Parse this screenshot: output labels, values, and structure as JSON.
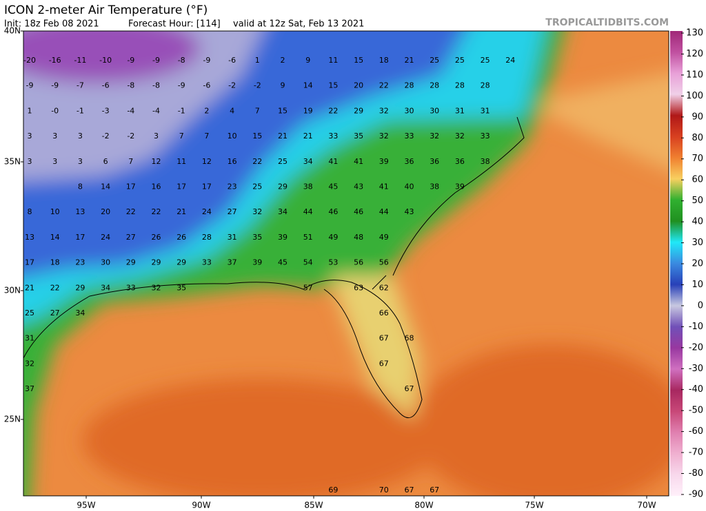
{
  "header": {
    "title": "ICON 2-meter Air Temperature (°F)",
    "init": "Init: 18z Feb 08 2021",
    "forecast_hour": "Forecast Hour: [114]",
    "valid": "valid at 12z Sat, Feb 13 2021",
    "watermark": "TROPICALTIDBITS.COM"
  },
  "map": {
    "lat_labels": [
      "40N",
      "35N",
      "30N",
      "25N"
    ],
    "lon_labels": [
      "95W",
      "90W",
      "85W",
      "80W",
      "75W",
      "70W"
    ],
    "rows": [
      [
        -20,
        -16,
        -11,
        -10,
        -9,
        -9,
        -8,
        -9,
        -6,
        1,
        2,
        9,
        11,
        15,
        18,
        21,
        25,
        25,
        25,
        24
      ],
      [
        -9,
        -9,
        -7,
        -6,
        -8,
        -8,
        -9,
        -6,
        -2,
        -2,
        9,
        14,
        15,
        20,
        22,
        28,
        28,
        28,
        28
      ],
      [
        1,
        "-0",
        -1,
        -3,
        -4,
        -4,
        -1,
        2,
        4,
        7,
        15,
        19,
        22,
        29,
        32,
        30,
        30,
        31,
        31
      ],
      [
        3,
        3,
        3,
        -2,
        -2,
        3,
        7,
        7,
        10,
        15,
        21,
        21,
        33,
        35,
        32,
        33,
        32,
        32,
        33
      ],
      [
        3,
        3,
        3,
        6,
        7,
        12,
        11,
        12,
        16,
        22,
        25,
        34,
        41,
        41,
        39,
        36,
        36,
        36,
        38
      ],
      [
        null,
        null,
        8,
        14,
        17,
        16,
        17,
        17,
        23,
        25,
        29,
        38,
        45,
        43,
        41,
        40,
        38,
        39
      ],
      [
        8,
        10,
        13,
        20,
        22,
        22,
        21,
        24,
        27,
        32,
        34,
        44,
        46,
        46,
        44,
        43
      ],
      [
        13,
        14,
        17,
        24,
        27,
        26,
        26,
        28,
        31,
        35,
        39,
        51,
        49,
        48,
        49
      ],
      [
        17,
        18,
        23,
        30,
        29,
        29,
        29,
        33,
        37,
        39,
        45,
        54,
        53,
        56,
        56
      ],
      [
        21,
        22,
        29,
        34,
        33,
        32,
        35,
        null,
        null,
        null,
        null,
        57,
        null,
        63,
        62
      ],
      [
        25,
        27,
        34,
        null,
        null,
        null,
        null,
        null,
        null,
        null,
        null,
        null,
        null,
        null,
        66
      ],
      [
        31,
        null,
        null,
        null,
        null,
        null,
        null,
        null,
        null,
        null,
        null,
        null,
        null,
        null,
        67,
        68
      ],
      [
        32,
        null,
        null,
        null,
        null,
        null,
        null,
        null,
        null,
        null,
        null,
        null,
        null,
        null,
        67
      ],
      [
        37,
        null,
        null,
        null,
        null,
        null,
        null,
        null,
        null,
        null,
        null,
        null,
        null,
        null,
        null,
        67
      ],
      [],
      [],
      [],
      [
        null,
        null,
        null,
        null,
        null,
        null,
        null,
        null,
        null,
        null,
        null,
        null,
        69,
        null,
        70,
        67,
        67
      ]
    ]
  },
  "colorbar": {
    "ticks": [
      130,
      120,
      110,
      100,
      90,
      80,
      70,
      60,
      50,
      40,
      30,
      20,
      10,
      0,
      -10,
      -20,
      -30,
      -40,
      -50,
      -60,
      -70,
      -80,
      -90
    ],
    "colors": [
      "#a02878",
      "#c050a0",
      "#e8a0d8",
      "#f0d0e8",
      "#b01818",
      "#d84020",
      "#f08030",
      "#f8d060",
      "#30b030",
      "#209020",
      "#20e8f8",
      "#3a8ae0",
      "#2840b8",
      "#c8c8e0",
      "#7050b8",
      "#9838a0",
      "#d070c0",
      "#a82860",
      "#c84878",
      "#e080b0",
      "#f0b0d0",
      "#f8d8ec",
      "#fff0fa"
    ]
  }
}
